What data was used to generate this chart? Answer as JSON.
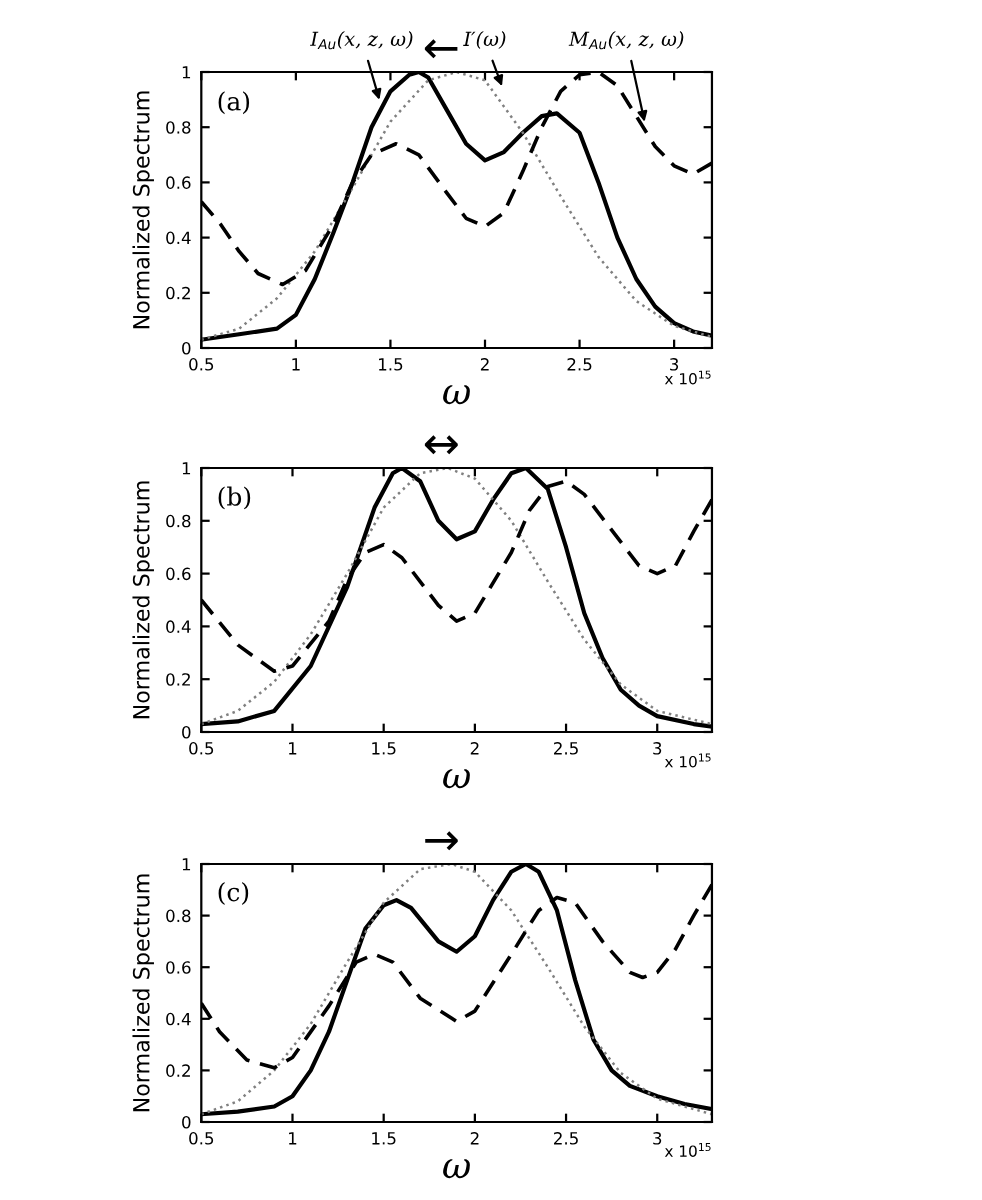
{
  "chart_data": [
    {
      "type": "line",
      "xlabel": "ω",
      "ylabel": "Normalized Spectrum",
      "xlim": [
        0.5,
        3.2
      ],
      "xticks": [
        0.5,
        1,
        1.5,
        2,
        2.5,
        3
      ],
      "ylim": [
        0,
        1
      ],
      "yticks": [
        0,
        0.2,
        0.4,
        0.6,
        0.8,
        1
      ],
      "annotations": [
        "(a)",
        "←",
        "x 10$^{15}$",
        {
          "text": "I$_{Au}$(x, z, ω)",
          "x": 1.45,
          "y": 0.88
        },
        {
          "text": "I′(ω)",
          "x": 2.1,
          "y": 0.93
        },
        {
          "text": "M$_{Au}$(x, z, ω)",
          "x": 2.85,
          "y": 0.8
        }
      ],
      "series": [
        {
          "color": "#000000",
          "line_style": "solid",
          "x": [
            0.5,
            0.7,
            0.9,
            1.0,
            1.1,
            1.2,
            1.3,
            1.4,
            1.5,
            1.6,
            1.65,
            1.7,
            1.8,
            1.9,
            2.0,
            2.1,
            2.2,
            2.3,
            2.38,
            2.5,
            2.6,
            2.7,
            2.8,
            2.9,
            3.0,
            3.1,
            3.2
          ],
          "values": [
            0.03,
            0.05,
            0.07,
            0.12,
            0.25,
            0.42,
            0.6,
            0.8,
            0.93,
            0.99,
            1.0,
            0.98,
            0.86,
            0.74,
            0.68,
            0.71,
            0.78,
            0.84,
            0.85,
            0.78,
            0.6,
            0.4,
            0.25,
            0.15,
            0.09,
            0.06,
            0.045
          ]
        },
        {
          "color": "#808080",
          "line_style": "dotted",
          "x": [
            0.5,
            0.7,
            0.9,
            1.1,
            1.3,
            1.5,
            1.7,
            1.85,
            2.0,
            2.2,
            2.4,
            2.6,
            2.8,
            3.0,
            3.2
          ],
          "values": [
            0.03,
            0.07,
            0.18,
            0.35,
            0.58,
            0.82,
            0.97,
            1.0,
            0.97,
            0.78,
            0.55,
            0.33,
            0.17,
            0.08,
            0.04
          ]
        },
        {
          "color": "#000000",
          "line_style": "dashed",
          "x": [
            0.5,
            0.6,
            0.7,
            0.8,
            0.93,
            1.05,
            1.2,
            1.3,
            1.4,
            1.53,
            1.65,
            1.8,
            1.9,
            2.0,
            2.1,
            2.2,
            2.3,
            2.4,
            2.5,
            2.6,
            2.7,
            2.8,
            2.9,
            3.0,
            3.1,
            3.2
          ],
          "values": [
            0.53,
            0.45,
            0.35,
            0.27,
            0.23,
            0.28,
            0.45,
            0.6,
            0.7,
            0.74,
            0.7,
            0.56,
            0.47,
            0.44,
            0.49,
            0.64,
            0.8,
            0.93,
            0.99,
            1.0,
            0.95,
            0.84,
            0.73,
            0.66,
            0.63,
            0.67
          ]
        }
      ]
    },
    {
      "type": "line",
      "xlabel": "ω",
      "ylabel": "Normalized Spectrum",
      "xlim": [
        0.5,
        3.3
      ],
      "xticks": [
        0.5,
        1,
        1.5,
        2,
        2.5,
        3
      ],
      "ylim": [
        0,
        1
      ],
      "yticks": [
        0,
        0.2,
        0.4,
        0.6,
        0.8,
        1
      ],
      "annotations": [
        "(b)",
        "↔",
        "x 10$^{15}$"
      ],
      "series": [
        {
          "color": "#000000",
          "line_style": "solid",
          "x": [
            0.5,
            0.7,
            0.9,
            1.1,
            1.3,
            1.45,
            1.55,
            1.6,
            1.7,
            1.8,
            1.9,
            2.0,
            2.1,
            2.2,
            2.28,
            2.4,
            2.5,
            2.6,
            2.7,
            2.8,
            2.9,
            3.0,
            3.2,
            3.3
          ],
          "values": [
            0.03,
            0.04,
            0.08,
            0.25,
            0.55,
            0.85,
            0.98,
            1.0,
            0.95,
            0.8,
            0.73,
            0.76,
            0.88,
            0.98,
            1.0,
            0.92,
            0.7,
            0.45,
            0.28,
            0.16,
            0.1,
            0.06,
            0.03,
            0.02
          ]
        },
        {
          "color": "#808080",
          "line_style": "dotted",
          "x": [
            0.5,
            0.7,
            0.9,
            1.1,
            1.3,
            1.5,
            1.7,
            1.85,
            2.0,
            2.2,
            2.4,
            2.6,
            2.8,
            3.0,
            3.3
          ],
          "values": [
            0.03,
            0.08,
            0.19,
            0.37,
            0.6,
            0.85,
            0.98,
            1.0,
            0.96,
            0.8,
            0.57,
            0.35,
            0.18,
            0.08,
            0.03
          ]
        },
        {
          "color": "#000000",
          "line_style": "dashed",
          "x": [
            0.5,
            0.7,
            0.9,
            1.0,
            1.2,
            1.3,
            1.4,
            1.5,
            1.6,
            1.8,
            1.9,
            2.0,
            2.2,
            2.3,
            2.4,
            2.5,
            2.6,
            2.8,
            2.9,
            3.0,
            3.1,
            3.2,
            3.3
          ],
          "values": [
            0.5,
            0.33,
            0.23,
            0.25,
            0.42,
            0.58,
            0.68,
            0.71,
            0.66,
            0.48,
            0.42,
            0.45,
            0.68,
            0.84,
            0.93,
            0.95,
            0.9,
            0.72,
            0.63,
            0.6,
            0.63,
            0.76,
            0.88
          ]
        }
      ]
    },
    {
      "type": "line",
      "xlabel": "ω",
      "ylabel": "Normalized Spectrum",
      "xlim": [
        0.5,
        3.3
      ],
      "xticks": [
        0.5,
        1,
        1.5,
        2,
        2.5,
        3
      ],
      "ylim": [
        0,
        1
      ],
      "yticks": [
        0,
        0.2,
        0.4,
        0.6,
        0.8,
        1
      ],
      "annotations": [
        "(c)",
        "→",
        "x 10$^{15}$"
      ],
      "series": [
        {
          "color": "#000000",
          "line_style": "solid",
          "x": [
            0.5,
            0.7,
            0.9,
            1.0,
            1.1,
            1.2,
            1.3,
            1.4,
            1.5,
            1.57,
            1.65,
            1.8,
            1.9,
            2.0,
            2.1,
            2.2,
            2.28,
            2.35,
            2.45,
            2.55,
            2.65,
            2.75,
            2.85,
            3.0,
            3.15,
            3.3
          ],
          "values": [
            0.03,
            0.04,
            0.06,
            0.1,
            0.2,
            0.35,
            0.55,
            0.75,
            0.84,
            0.86,
            0.83,
            0.7,
            0.66,
            0.72,
            0.86,
            0.97,
            1.0,
            0.97,
            0.82,
            0.55,
            0.32,
            0.2,
            0.14,
            0.1,
            0.07,
            0.05
          ]
        },
        {
          "color": "#808080",
          "line_style": "dotted",
          "x": [
            0.5,
            0.7,
            0.9,
            1.1,
            1.3,
            1.5,
            1.7,
            1.87,
            2.0,
            2.2,
            2.4,
            2.6,
            2.8,
            3.0,
            3.3
          ],
          "values": [
            0.03,
            0.08,
            0.2,
            0.38,
            0.62,
            0.85,
            0.98,
            1.0,
            0.97,
            0.82,
            0.6,
            0.37,
            0.19,
            0.09,
            0.03
          ]
        },
        {
          "color": "#000000",
          "line_style": "dashed",
          "x": [
            0.5,
            0.6,
            0.75,
            0.9,
            1.0,
            1.2,
            1.35,
            1.45,
            1.55,
            1.7,
            1.9,
            2.0,
            2.2,
            2.35,
            2.45,
            2.55,
            2.7,
            2.85,
            2.92,
            3.0,
            3.1,
            3.2,
            3.3
          ],
          "values": [
            0.46,
            0.35,
            0.24,
            0.21,
            0.25,
            0.45,
            0.62,
            0.65,
            0.62,
            0.48,
            0.39,
            0.43,
            0.65,
            0.82,
            0.87,
            0.85,
            0.7,
            0.58,
            0.56,
            0.58,
            0.67,
            0.8,
            0.92
          ]
        }
      ]
    }
  ]
}
